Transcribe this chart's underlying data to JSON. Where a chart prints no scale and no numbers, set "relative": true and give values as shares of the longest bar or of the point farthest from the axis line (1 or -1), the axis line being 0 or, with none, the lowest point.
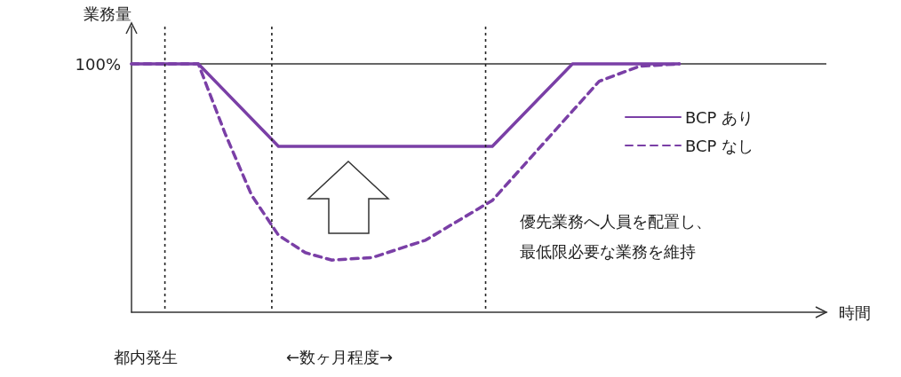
{
  "chart_data": {
    "type": "line",
    "relative": true,
    "xlabel": "時間",
    "ylabel": "業務量",
    "grid": false,
    "legend": "right",
    "marker": "none",
    "categories": [
      null,
      null,
      null,
      null,
      null,
      null,
      null,
      null,
      null,
      null,
      null,
      null,
      null,
      null,
      null,
      null,
      null,
      null,
      null,
      null,
      null,
      null,
      null,
      null,
      null,
      null,
      null,
      null,
      null,
      null,
      null,
      null,
      null,
      null,
      null,
      null,
      null,
      null,
      null,
      null,
      null,
      null,
      null,
      null,
      null,
      null,
      null,
      null,
      null,
      null,
      null,
      null,
      null
    ],
    "series": [
      {
        "name": "BCP あり",
        "color": "#7a3fa6",
        "line_style": "solid",
        "values": [
          1,
          null,
          null,
          null,
          null,
          1,
          null,
          null,
          null,
          null,
          null,
          0.668,
          null,
          null,
          null,
          null,
          null,
          null,
          null,
          null,
          null,
          null,
          null,
          null,
          null,
          null,
          null,
          0.668,
          null,
          null,
          null,
          null,
          null,
          1,
          null,
          null,
          null,
          null,
          null,
          null,
          null,
          1,
          null,
          null,
          null,
          null,
          null,
          null,
          null,
          null,
          null,
          null,
          null
        ]
      },
      {
        "name": "BCP なし",
        "color": "#7a3fa6",
        "line_style": "dashed",
        "values": [
          1,
          null,
          null,
          null,
          null,
          1,
          null,
          0.72,
          null,
          0.47,
          null,
          0.31,
          null,
          0.24,
          null,
          0.21,
          null,
          null,
          0.22,
          null,
          null,
          null,
          0.29,
          null,
          null,
          null,
          null,
          0.45,
          null,
          null,
          0.63,
          null,
          null,
          0.81,
          null,
          0.93,
          null,
          null,
          0.99,
          null,
          null,
          1,
          null,
          null,
          null,
          null,
          null,
          null,
          null,
          null,
          null,
          null,
          null
        ]
      }
    ],
    "ref_lines": [
      {
        "axis": "y",
        "value": 1,
        "label": "100%",
        "color": "#333333",
        "line_style": "solid"
      }
    ],
    "annotations": [
      "都内発生",
      "←数ヶ月程度→",
      "優先業務へ人員を配置し、最低限必要な業務を維持"
    ]
  }
}
